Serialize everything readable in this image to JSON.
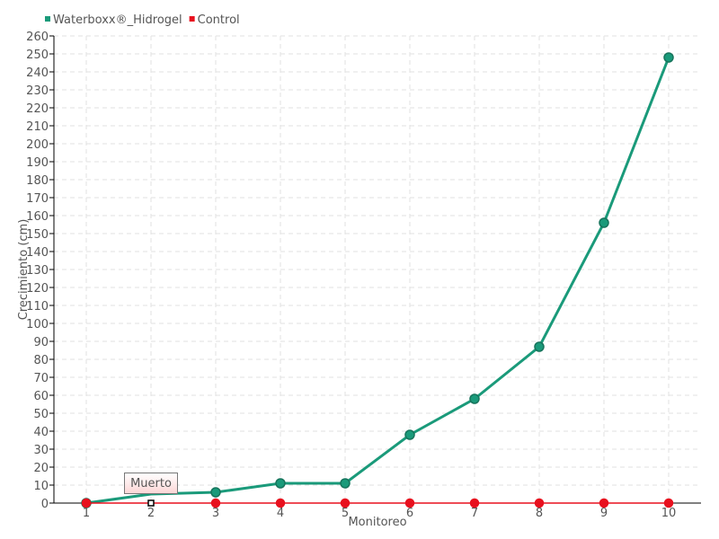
{
  "chart_data": {
    "type": "line",
    "xlabel": "Monitoreo",
    "ylabel": "Crecimiento (cm)",
    "x": [
      1,
      2,
      3,
      4,
      5,
      6,
      7,
      8,
      9,
      10
    ],
    "ylim": [
      0,
      260
    ],
    "ytick_step": 10,
    "grid": true,
    "legend_placement": "top-left",
    "series": [
      {
        "name": "Waterboxx®_Hidrogel",
        "color": "#1a9a7a",
        "values": [
          0,
          5,
          6,
          11,
          11,
          38,
          58,
          87,
          156,
          248
        ]
      },
      {
        "name": "Control",
        "color": "#e8101e",
        "values": [
          0,
          0,
          0,
          0,
          0,
          0,
          0,
          0,
          0,
          0
        ]
      }
    ],
    "annotations": [
      {
        "x": 2,
        "series": "Control",
        "text": "Muerto"
      }
    ]
  }
}
